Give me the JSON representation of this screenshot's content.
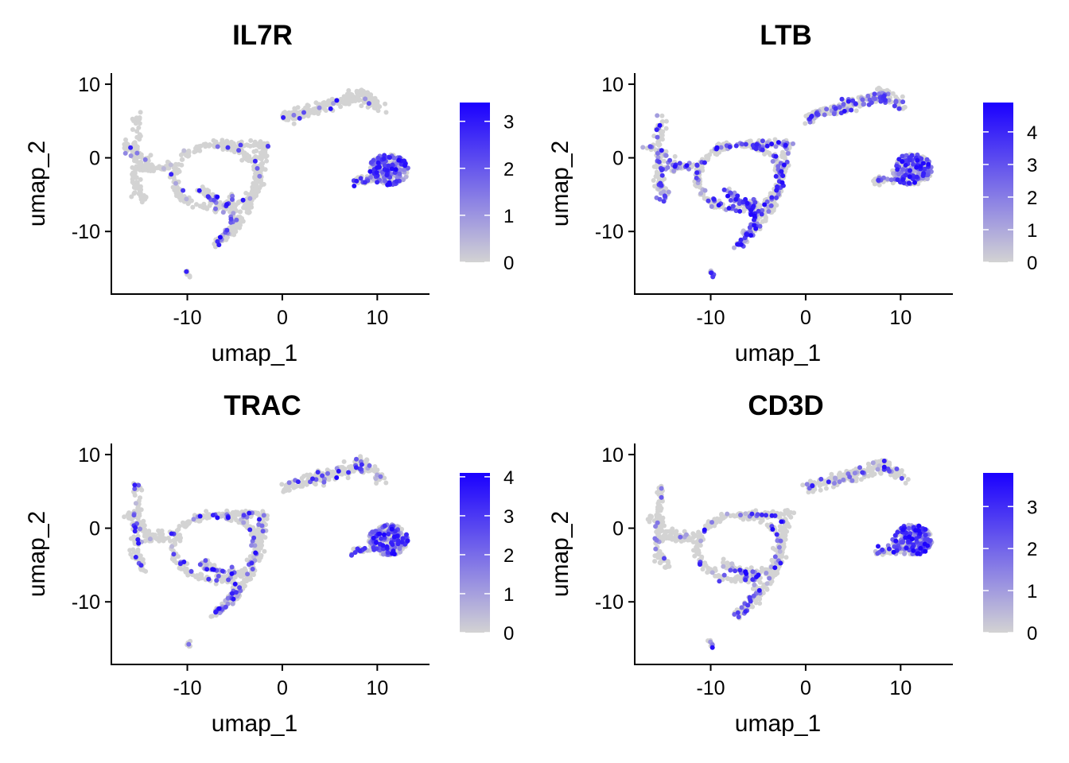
{
  "chart_data": [
    {
      "type": "scatter",
      "title": "IL7R",
      "xlabel": "umap_1",
      "ylabel": "umap_2",
      "xticks": [
        "-10",
        "0",
        "10"
      ],
      "yticks": [
        "10",
        "0",
        "-10"
      ],
      "xlim": [
        -18,
        15.5
      ],
      "ylim": [
        -18.5,
        11.5
      ],
      "grid": false,
      "colorbar": {
        "min": 0,
        "max": 3.4,
        "ticks": [
          "0",
          "1",
          "2",
          "3"
        ],
        "low_color": "#d3d3d3",
        "high_color": "#1a00ff"
      },
      "hotspots": {
        "cluster_r": 0.6,
        "cluster_l": 0.4,
        "ring": 0.04,
        "lower_branch": 0.2,
        "tail": 0.3,
        "arc": 0.03,
        "upper_arm": 0.03,
        "left_arm": 0.03
      },
      "seed": 11
    },
    {
      "type": "scatter",
      "title": "LTB",
      "xlabel": "umap_1",
      "ylabel": "umap_2",
      "xticks": [
        "-10",
        "0",
        "10"
      ],
      "yticks": [
        "10",
        "0",
        "-10"
      ],
      "xlim": [
        -18,
        15.5
      ],
      "ylim": [
        -18.5,
        11.5
      ],
      "grid": false,
      "colorbar": {
        "min": 0,
        "max": 4.9,
        "ticks": [
          "0",
          "1",
          "2",
          "3",
          "4"
        ],
        "low_color": "#d3d3d3",
        "high_color": "#1a00ff"
      },
      "hotspots": {
        "cluster_r": 0.5,
        "cluster_l": 0.4,
        "ring": 0.35,
        "lower_branch": 0.5,
        "tail": 0.6,
        "arc": 0.25,
        "upper_arm": 0.3,
        "left_arm": 0.3
      },
      "seed": 23
    },
    {
      "type": "scatter",
      "title": "TRAC",
      "xlabel": "umap_1",
      "ylabel": "umap_2",
      "xticks": [
        "-10",
        "0",
        "10"
      ],
      "yticks": [
        "10",
        "0",
        "-10"
      ],
      "xlim": [
        -18,
        15.5
      ],
      "ylim": [
        -18.5,
        11.5
      ],
      "grid": false,
      "colorbar": {
        "min": 0,
        "max": 4.1,
        "ticks": [
          "0",
          "1",
          "2",
          "3",
          "4"
        ],
        "low_color": "#d3d3d3",
        "high_color": "#1a00ff"
      },
      "hotspots": {
        "cluster_r": 0.55,
        "cluster_l": 0.4,
        "ring": 0.12,
        "lower_branch": 0.35,
        "tail": 0.35,
        "arc": 0.15,
        "upper_arm": 0.12,
        "left_arm": 0.1
      },
      "seed": 37
    },
    {
      "type": "scatter",
      "title": "CD3D",
      "xlabel": "umap_1",
      "ylabel": "umap_2",
      "xticks": [
        "-10",
        "0",
        "10"
      ],
      "yticks": [
        "10",
        "0",
        "-10"
      ],
      "xlim": [
        -18,
        15.5
      ],
      "ylim": [
        -18.5,
        11.5
      ],
      "grid": false,
      "colorbar": {
        "min": 0,
        "max": 3.8,
        "ticks": [
          "0",
          "1",
          "2",
          "3"
        ],
        "low_color": "#d3d3d3",
        "high_color": "#1a00ff"
      },
      "hotspots": {
        "cluster_r": 0.6,
        "cluster_l": 0.5,
        "ring": 0.12,
        "lower_branch": 0.3,
        "tail": 0.35,
        "arc": 0.1,
        "upper_arm": 0.15,
        "left_arm": 0.12
      },
      "seed": 53
    }
  ]
}
